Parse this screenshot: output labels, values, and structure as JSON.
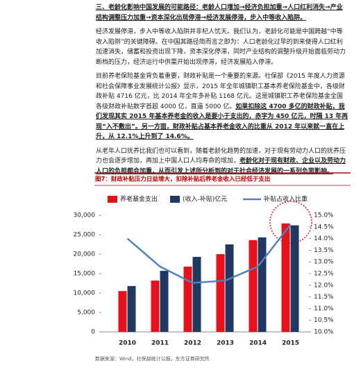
{
  "paragraphs": [
    [
      "三、老龄化影响中国发展的可能路径：老龄人口增加→经济负担加重→人口红利消失→产业结构调整压力加重→资本深化出现停滞→经济发展停滞，步入中等收入陷阱。"
    ],
    [
      "经济发展停滞，步入中等收入陷阱并非杞人忧天。我们认为，老龄化可能是中国跨越“中等收入陷阱”的关键障碍。在中国其路径简而言之即为：人口老龄化过早的到来使得人口红利加速消失，储蓄和投资出现下降，资本深化停滞，同时产业结构的调整升级开始面临劳动力断档的压力，经济运行中供需开始出现停滞，经济发展陷入停滞。"
    ],
    [
      "目前养老保险基金背负着重要，财政补贴是一个重要的来源。社保部《2015 年度人力资源和社会保障事业发展统计公报》显示，2015 年全年城镇职工基本养老保险基金中，各级财政补贴 4716 亿元，比 2014 年全年多补贴 1168 亿元。这是城镇职工养老保险基金全国各级财政补贴数字首超 4000 亿，直逼 5000 亿。",
      "如果扣除这 4700 多亿的财政补贴，我们发现其实 2015 年基本养老金的收入是要小于支出的，赤字为 450 亿元，时隔 13 年再现“入不敷出”。另一方面，财政补贴占基本养老金收入的比重从 2012 年以来就一直在上升，从 12.1%上升到了 14.6%。"
    ],
    [
      "从老年人口抚养比我们也可以看到，随着老龄化趋势的加速，对于现有劳动力人口的抚养压力也会逐步增加，再加上中国人口人均寿命的增加，",
      "老龄化对于现有财政、企业以及劳动力人口的负担都会加重，从而引发上述所分析到的对于社会经济发展的一系列负面影响。"
    ]
  ],
  "figure_title": "图7：财政补贴压力日益增大，扣除补贴后养老金收入已经低于支出",
  "source": "数据来源：Wind，社保部统计公报，东方证券研究所",
  "chart_data": {
    "type": "bar-line",
    "categories": [
      "2010",
      "2011",
      "2012",
      "2013",
      "2014",
      "2015"
    ],
    "series": [
      {
        "name": "养老基金支出",
        "color": "#e8101a",
        "values": [
          10500,
          13200,
          16800,
          20000,
          23600,
          27900
        ]
      },
      {
        "name": "(收入-补贴)亿元",
        "color": "#1f3864",
        "values": [
          11800,
          15700,
          19300,
          22500,
          24300,
          27400
        ]
      },
      {
        "name": "补贴占收入比重",
        "color": "#4f81bd",
        "axis": "y2",
        "values": [
          14.0,
          12.8,
          12.1,
          12.2,
          12.8,
          14.6
        ]
      }
    ],
    "ylim": [
      0,
      30000
    ],
    "yticks": [
      0,
      {
        "value": 5000,
        "label": "5,000"
      },
      {
        "value": 10000,
        "label": "10,000"
      },
      {
        "value": 15000,
        "label": "15,000"
      },
      {
        "value": 20000,
        "label": "20,000"
      },
      {
        "value": 25000,
        "label": "25,000"
      },
      {
        "value": 30000,
        "label": "30,000"
      }
    ],
    "y2lim": [
      10,
      15
    ],
    "y2ticks": [
      {
        "value": 10,
        "label": "10.0%"
      },
      {
        "value": 10.5,
        "label": "10.5%"
      },
      {
        "value": 11,
        "label": "11.0%"
      },
      {
        "value": 11.5,
        "label": "11.5%"
      },
      {
        "value": 12,
        "label": "12.0%"
      },
      {
        "value": 12.5,
        "label": "12.5%"
      },
      {
        "value": 13,
        "label": "13.0%"
      },
      {
        "value": 13.5,
        "label": "13.5%"
      },
      {
        "value": 14,
        "label": "14.0%"
      },
      {
        "value": 14.5,
        "label": "14.5%"
      },
      {
        "value": 15,
        "label": "15.0%"
      }
    ]
  }
}
